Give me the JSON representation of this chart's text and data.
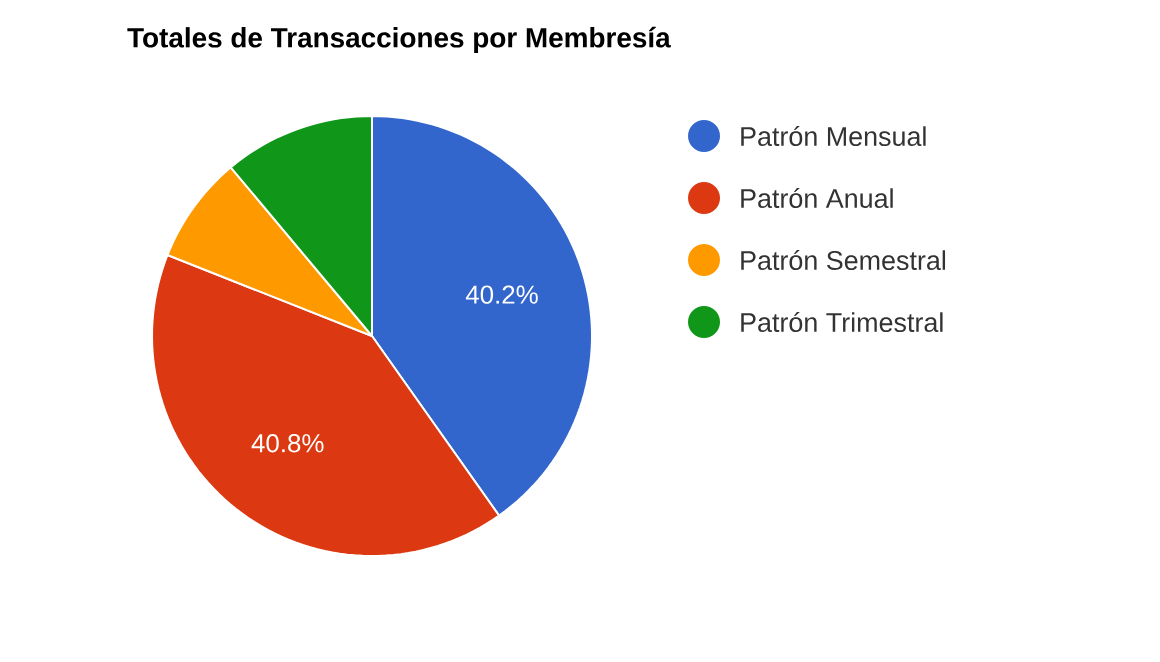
{
  "chart_data": {
    "type": "pie",
    "title": "Totales de Transacciones por Membresía",
    "categories": [
      "Patrón Mensual",
      "Patrón Anual",
      "Patrón Semestral",
      "Patrón Trimestral"
    ],
    "values": [
      40.2,
      40.8,
      7.9,
      11.1
    ],
    "colors": [
      "#3366cc",
      "#dc3912",
      "#ff9900",
      "#109618"
    ],
    "value_labels": [
      "40.2%",
      "40.8%",
      null,
      null
    ],
    "legend": "right"
  }
}
